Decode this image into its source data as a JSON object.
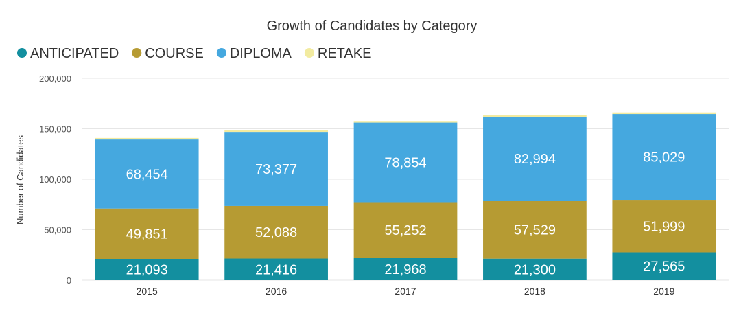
{
  "chart_data": {
    "type": "bar",
    "stacked": true,
    "title": "Growth of Candidates by Category",
    "ylabel": "Number of Candidates",
    "xlabel": "",
    "categories": [
      "2015",
      "2016",
      "2017",
      "2018",
      "2019"
    ],
    "ylim": [
      0,
      200000
    ],
    "yticks": [
      0,
      50000,
      100000,
      150000,
      200000
    ],
    "ytick_labels": [
      "0",
      "50,000",
      "100,000",
      "150,000",
      "200,000"
    ],
    "grid": true,
    "legend_position": "top-left",
    "series": [
      {
        "name": "ANTICIPATED",
        "color": "#138f9f",
        "values": [
          21093,
          21416,
          21968,
          21300,
          27565
        ],
        "labels": [
          "21,093",
          "21,416",
          "21,968",
          "21,300",
          "27,565"
        ]
      },
      {
        "name": "COURSE",
        "color": "#b69b33",
        "values": [
          49851,
          52088,
          55252,
          57529,
          51999
        ],
        "labels": [
          "49,851",
          "52,088",
          "55,252",
          "57,529",
          "51,999"
        ]
      },
      {
        "name": "DIPLOMA",
        "color": "#45a8df",
        "values": [
          68454,
          73377,
          78854,
          82994,
          85029
        ],
        "labels": [
          "68,454",
          "73,377",
          "78,854",
          "82,994",
          "85,029"
        ]
      },
      {
        "name": "RETAKE",
        "color": "#f2eba0",
        "values": [
          1500,
          1500,
          1600,
          1700,
          1600
        ]
      }
    ]
  }
}
